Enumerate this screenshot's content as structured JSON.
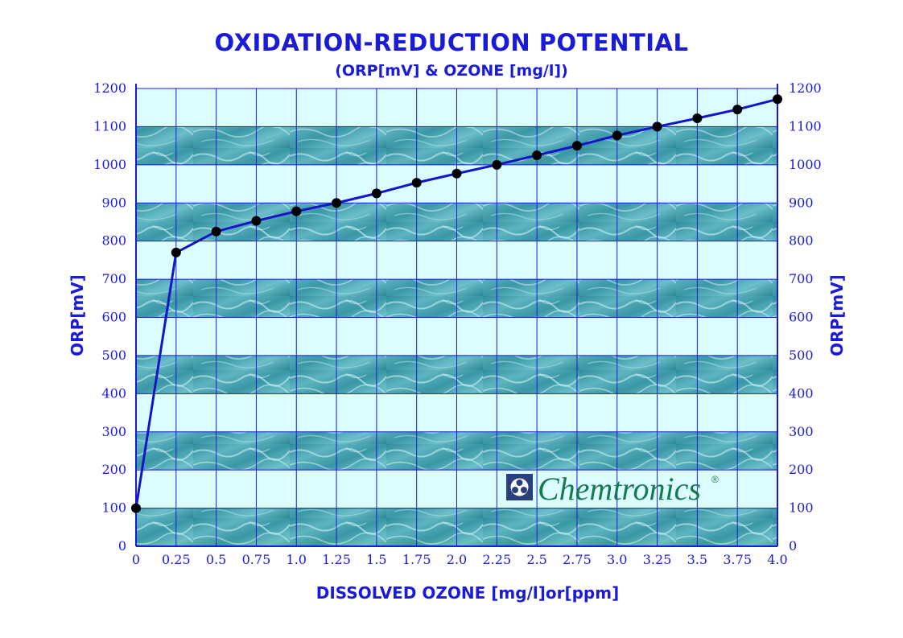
{
  "chart_data": {
    "type": "line",
    "title": "OXIDATION-REDUCTION POTENTIAL",
    "subtitle": "(ORP[mV] & OZONE [mg/l])",
    "xlabel": "DISSOLVED OZONE [mg/l]or[ppm]",
    "ylabel": "ORP[mV]",
    "ylabel_right": "ORP[mV]",
    "x_tick_labels": [
      "0",
      "0.25",
      "0.5",
      "0.75",
      "1.0",
      "1.25",
      "1.5",
      "1.75",
      "2.0",
      "2.25",
      "2.5",
      "2.75",
      "3.0",
      "3.25",
      "3.5",
      "3.75",
      "4.0"
    ],
    "y_tick_labels": [
      "0",
      "100",
      "200",
      "300",
      "400",
      "500",
      "600",
      "700",
      "800",
      "900",
      "1000",
      "1100",
      "1200"
    ],
    "xlim": [
      0,
      4.0
    ],
    "ylim": [
      0,
      1200
    ],
    "grid": true,
    "x": [
      0,
      0.25,
      0.5,
      0.75,
      1.0,
      1.25,
      1.5,
      1.75,
      2.0,
      2.25,
      2.5,
      2.75,
      3.0,
      3.25,
      3.5,
      3.75,
      4.0
    ],
    "values": [
      100,
      770,
      825,
      853,
      878,
      900,
      925,
      953,
      977,
      1000,
      1025,
      1050,
      1077,
      1100,
      1122,
      1145,
      1172
    ],
    "colors": {
      "axis": "#1a1ad9",
      "line": "#1414c8",
      "marker": "#000000",
      "band_light": "#dcfdff",
      "band_water": "#3f9aa8"
    }
  },
  "logo": {
    "text": "Chemtronics",
    "mark": "®"
  }
}
